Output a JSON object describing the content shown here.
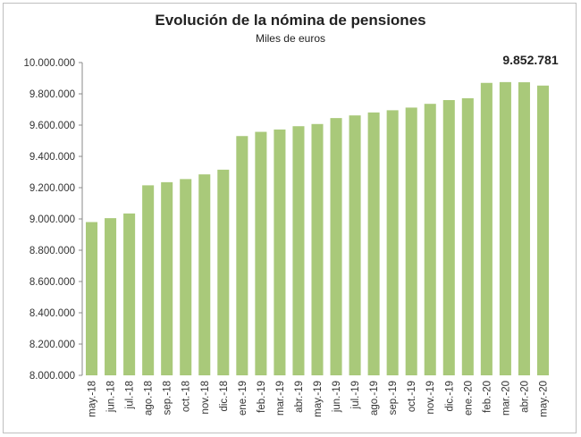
{
  "chart_data": {
    "type": "bar",
    "title": "Evolución de la nómina de pensiones",
    "subtitle": "Miles de euros",
    "xlabel": "",
    "ylabel": "",
    "ylim": [
      8000000,
      10000000
    ],
    "y_ticks": [
      8000000,
      8200000,
      8400000,
      8600000,
      8800000,
      9000000,
      9200000,
      9400000,
      9600000,
      9800000,
      10000000
    ],
    "y_tick_labels": [
      "8.000.000",
      "8.200.000",
      "8.400.000",
      "8.600.000",
      "8.800.000",
      "9.000.000",
      "9.200.000",
      "9.400.000",
      "9.600.000",
      "9.800.000",
      "10.000.000"
    ],
    "categories": [
      "may.-18",
      "jun.-18",
      "jul.-18",
      "ago.-18",
      "sep.-18",
      "oct.-18",
      "nov.-18",
      "dic.-18",
      "ene.-19",
      "feb.-19",
      "mar.-19",
      "abr.-19",
      "may.-19",
      "jun.-19",
      "jul.-19",
      "ago.-19",
      "sep.-19",
      "oct.-19",
      "nov.-19",
      "dic.-19",
      "ene.-20",
      "feb.-20",
      "mar.-20",
      "abr.-20",
      "may.-20"
    ],
    "values": [
      8980000,
      9005000,
      9035000,
      9215000,
      9235000,
      9255000,
      9285000,
      9315000,
      9530000,
      9557000,
      9572000,
      9593000,
      9607000,
      9645000,
      9662000,
      9681000,
      9695000,
      9712000,
      9736000,
      9760000,
      9772000,
      9870000,
      9875000,
      9874000,
      9852781
    ],
    "annotation": {
      "text": "9.852.781",
      "category": "may.-20"
    },
    "bar_color": "#a9c97a",
    "grid": false,
    "legend": "none"
  }
}
